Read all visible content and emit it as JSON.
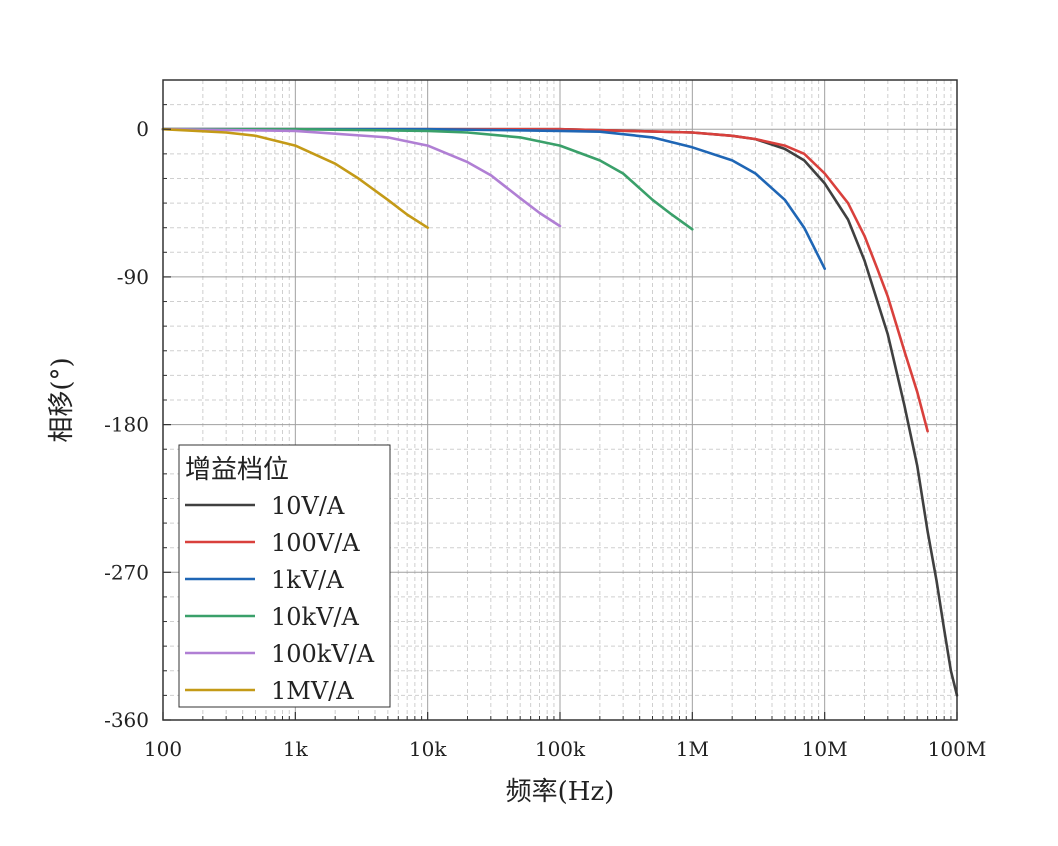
{
  "chart_data": {
    "type": "line",
    "xlabel": "频率(Hz)",
    "ylabel": "相移(°)",
    "xscale": "log",
    "xlim": [
      100,
      100000000
    ],
    "ylim": [
      -360,
      30
    ],
    "grid": true,
    "x_ticks": [
      {
        "value": 100,
        "label": "100"
      },
      {
        "value": 1000,
        "label": "1k"
      },
      {
        "value": 10000,
        "label": "10k"
      },
      {
        "value": 100000,
        "label": "100k"
      },
      {
        "value": 1000000,
        "label": "1M"
      },
      {
        "value": 10000000,
        "label": "10M"
      },
      {
        "value": 100000000,
        "label": "100M"
      }
    ],
    "y_ticks": [
      {
        "value": 0,
        "label": "0"
      },
      {
        "value": -90,
        "label": "-90"
      },
      {
        "value": -180,
        "label": "-180"
      },
      {
        "value": -270,
        "label": "-270"
      },
      {
        "value": -360,
        "label": "-360"
      }
    ],
    "legend": {
      "title": "增益档位",
      "position": "bottom-left"
    },
    "series": [
      {
        "name": "10V/A",
        "color": "#404040",
        "x": [
          100,
          1000,
          10000,
          100000,
          1000000,
          2000000,
          3000000,
          5000000,
          7000000,
          10000000,
          15000000,
          20000000,
          30000000,
          40000000,
          50000000,
          60000000,
          70000000,
          80000000,
          90000000,
          100000000
        ],
        "y": [
          0,
          0,
          0,
          0,
          -2,
          -4,
          -6,
          -12,
          -19,
          -33,
          -55,
          -80,
          -125,
          -168,
          -205,
          -245,
          -275,
          -305,
          -330,
          -345
        ]
      },
      {
        "name": "100V/A",
        "color": "#d9403c",
        "x": [
          100,
          1000,
          10000,
          100000,
          1000000,
          2000000,
          3000000,
          5000000,
          7000000,
          10000000,
          15000000,
          20000000,
          25000000,
          30000000,
          40000000,
          50000000,
          60000000
        ],
        "y": [
          0,
          0,
          0,
          0,
          -2,
          -4,
          -6,
          -10,
          -15,
          -27,
          -45,
          -65,
          -85,
          -102,
          -135,
          -160,
          -184
        ]
      },
      {
        "name": "1kV/A",
        "color": "#1f66b5",
        "x": [
          100,
          1000,
          10000,
          100000,
          200000,
          500000,
          1000000,
          2000000,
          3000000,
          5000000,
          7000000,
          10000000
        ],
        "y": [
          0,
          0,
          0,
          -1,
          -1.5,
          -5,
          -11,
          -19,
          -27,
          -43,
          -60,
          -85
        ]
      },
      {
        "name": "10kV/A",
        "color": "#3aa06a",
        "x": [
          100,
          1000,
          10000,
          20000,
          50000,
          100000,
          200000,
          300000,
          500000,
          700000,
          1000000
        ],
        "y": [
          0,
          0,
          -1,
          -2,
          -5,
          -10,
          -19,
          -27,
          -43,
          -52,
          -61
        ]
      },
      {
        "name": "100kV/A",
        "color": "#b07fd4",
        "x": [
          100,
          1000,
          5000,
          10000,
          20000,
          30000,
          50000,
          70000,
          100000
        ],
        "y": [
          0,
          -1,
          -5,
          -10,
          -20,
          -28,
          -42,
          -51,
          -59
        ]
      },
      {
        "name": "1MV/A",
        "color": "#c49a17",
        "x": [
          100,
          300,
          500,
          1000,
          2000,
          3000,
          5000,
          7000,
          10000
        ],
        "y": [
          0,
          -2,
          -4,
          -10,
          -21,
          -30,
          -43,
          -52,
          -60
        ]
      }
    ]
  }
}
